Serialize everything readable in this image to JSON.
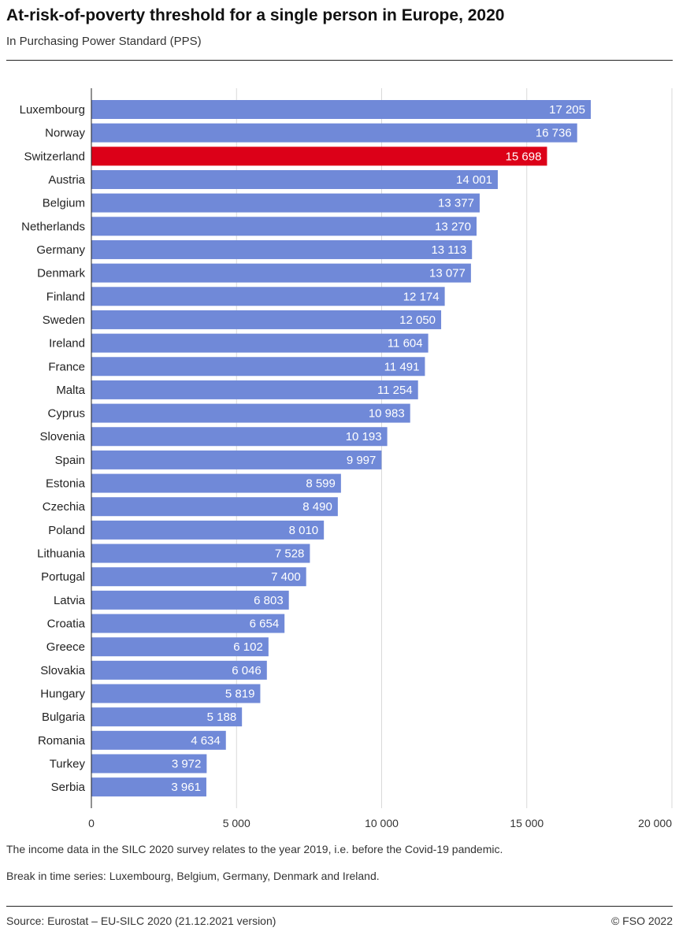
{
  "title": "At-risk-of-poverty threshold for a single person in Europe, 2020",
  "subtitle": "In Purchasing Power Standard (PPS)",
  "notes": [
    "The income data in the SILC 2020 survey relates to the year 2019, i.e. before the Covid-19 pandemic.",
    "Break in time series: Luxembourg, Belgium, Germany, Denmark and Ireland."
  ],
  "source": "Source: Eurostat – EU-SILC 2020 (21.12.2021 version)",
  "copyright": "© FSO 2022",
  "colors": {
    "bar": "#7089d8",
    "highlight": "#dc0018",
    "grid": "#d9d9d9"
  },
  "chart_data": {
    "type": "bar",
    "orientation": "horizontal",
    "categories": [
      "Luxembourg",
      "Norway",
      "Switzerland",
      "Austria",
      "Belgium",
      "Netherlands",
      "Germany",
      "Denmark",
      "Finland",
      "Sweden",
      "Ireland",
      "France",
      "Malta",
      "Cyprus",
      "Slovenia",
      "Spain",
      "Estonia",
      "Czechia",
      "Poland",
      "Lithuania",
      "Portugal",
      "Latvia",
      "Croatia",
      "Greece",
      "Slovakia",
      "Hungary",
      "Bulgaria",
      "Romania",
      "Turkey",
      "Serbia"
    ],
    "values": [
      17205,
      16736,
      15698,
      14001,
      13377,
      13270,
      13113,
      13077,
      12174,
      12050,
      11604,
      11491,
      11254,
      10983,
      10193,
      9997,
      8599,
      8490,
      8010,
      7528,
      7400,
      6803,
      6654,
      6102,
      6046,
      5819,
      5188,
      4634,
      3972,
      3961
    ],
    "highlight": "Switzerland",
    "xlim": [
      0,
      20000
    ],
    "xticks": [
      0,
      5000,
      10000,
      15000,
      20000
    ],
    "xtick_labels": [
      "0",
      "5 000",
      "10 000",
      "15 000",
      "20 000"
    ],
    "grid": true
  }
}
